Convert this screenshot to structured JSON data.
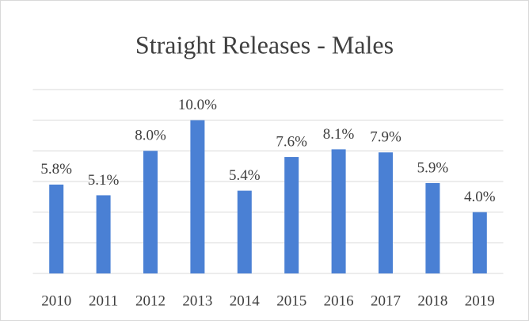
{
  "chart_data": {
    "type": "bar",
    "title": "Straight Releases - Males",
    "categories": [
      "2010",
      "2011",
      "2012",
      "2013",
      "2014",
      "2015",
      "2016",
      "2017",
      "2018",
      "2019"
    ],
    "values": [
      5.8,
      5.1,
      8.0,
      10.0,
      5.4,
      7.6,
      8.1,
      7.9,
      5.9,
      4.0
    ],
    "value_labels": [
      "5.8%",
      "5.1%",
      "8.0%",
      "10.0%",
      "5.4%",
      "7.6%",
      "8.1%",
      "7.9%",
      "5.9%",
      "4.0%"
    ],
    "color": "#4a80d4",
    "ylim": [
      0,
      12
    ],
    "yticks": [
      0,
      2,
      4,
      6,
      8,
      10,
      12
    ],
    "grid": true
  }
}
